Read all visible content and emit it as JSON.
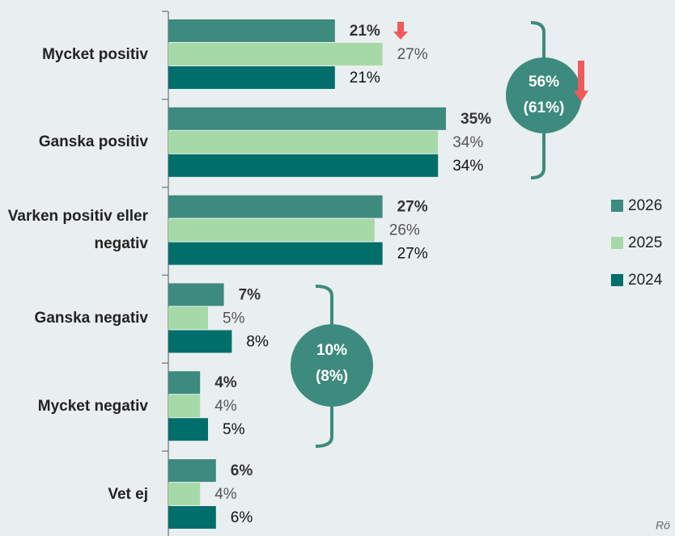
{
  "chart_data": {
    "type": "barh",
    "categories": [
      "Mycket positiv",
      "Ganska positiv",
      "Varken positiv eller negativ",
      "Ganska negativ",
      "Mycket negativ",
      "Vet ej"
    ],
    "series": [
      {
        "name": "2026",
        "color": "#3d8a7e",
        "values": [
          21,
          35,
          27,
          7,
          4,
          6
        ],
        "value_labels": [
          "21%",
          "35%",
          "27%",
          "7%",
          "4%",
          "6%"
        ]
      },
      {
        "name": "2025",
        "color": "#a6d9a8",
        "values": [
          27,
          34,
          26,
          5,
          4,
          4
        ],
        "value_labels": [
          "27%",
          "34%",
          "26%",
          "5%",
          "4%",
          "4%"
        ]
      },
      {
        "name": "2024",
        "color": "#006e6b",
        "values": [
          21,
          34,
          27,
          8,
          5,
          6
        ],
        "value_labels": [
          "21%",
          "34%",
          "27%",
          "8%",
          "5%",
          "6%"
        ]
      }
    ],
    "annotations": [
      {
        "value": "56%",
        "previous": "(61%)"
      },
      {
        "value": "10%",
        "previous": "(8%)"
      }
    ],
    "note": "Rö",
    "legend": "right"
  }
}
